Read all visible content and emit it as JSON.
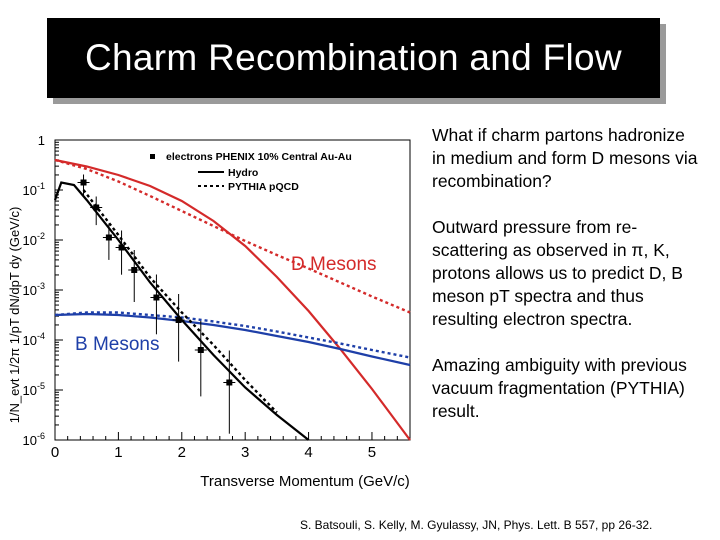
{
  "slide": {
    "title": "Charm Recombination and Flow",
    "bullets": [
      "What if charm partons hadronize in medium and form D mesons via recombination?",
      "Outward pressure from re-scattering as observed in π, K, protons allows us to predict D, B meson pT spectra and thus resulting electron spectra.",
      "Amazing ambiguity with previous vacuum fragmentation (PYTHIA) result."
    ],
    "citation": "S. Batsouli, S. Kelly, M. Gyulassy, JN, Phys. Lett. B 557, pp 26-32."
  },
  "chart_data": {
    "type": "line",
    "xlabel": "Transverse Momentum (GeV/c)",
    "ylabel": "1/N_evt 1/2π 1/pT dN/dpT dy (GeV/c)",
    "xlim": [
      0,
      5.6
    ],
    "ylim_log10": [
      -6,
      0
    ],
    "y_scale": "log",
    "x_ticks": [
      "0",
      "1",
      "2",
      "3",
      "4",
      "5"
    ],
    "y_ticks": [
      "1",
      "10^-1",
      "10^-2",
      "10^-3",
      "10^-4",
      "10^-5",
      "10^-6"
    ],
    "legend": {
      "placement": "top",
      "entries": [
        "electrons PHENIX 10% Central Au-Au",
        "Hydro",
        "PYTHIA pQCD"
      ]
    },
    "annotations": [
      "D Mesons",
      "B Mesons"
    ],
    "colors": {
      "d_mesons": "#d42a2a",
      "b_mesons": "#1e3fa8",
      "electrons": "#000000"
    },
    "series": [
      {
        "name": "D Mesons Hydro",
        "style": "solid",
        "color": "#d42a2a",
        "x": [
          0.0,
          0.5,
          1.0,
          1.5,
          2.0,
          2.5,
          3.0,
          3.5,
          4.0,
          4.5,
          5.0,
          5.6
        ],
        "log10y": [
          -0.4,
          -0.53,
          -0.7,
          -0.92,
          -1.22,
          -1.62,
          -2.12,
          -2.74,
          -3.42,
          -4.18,
          -4.98,
          -6.0
        ]
      },
      {
        "name": "D Mesons PYTHIA",
        "style": "dotted",
        "color": "#d42a2a",
        "x": [
          0.0,
          0.5,
          1.0,
          1.5,
          2.0,
          2.5,
          3.0,
          3.5,
          4.0,
          4.5,
          5.0,
          5.6
        ],
        "log10y": [
          -0.4,
          -0.58,
          -0.83,
          -1.12,
          -1.42,
          -1.72,
          -2.02,
          -2.3,
          -2.57,
          -2.85,
          -3.13,
          -3.45
        ]
      },
      {
        "name": "B Mesons Hydro",
        "style": "solid",
        "color": "#1e3fa8",
        "x": [
          0.0,
          0.5,
          1.0,
          1.5,
          2.0,
          2.5,
          3.0,
          3.5,
          4.0,
          4.5,
          5.0,
          5.6
        ],
        "log10y": [
          -3.5,
          -3.48,
          -3.5,
          -3.55,
          -3.62,
          -3.7,
          -3.8,
          -3.92,
          -4.04,
          -4.18,
          -4.33,
          -4.5
        ]
      },
      {
        "name": "B Mesons PYTHIA",
        "style": "dotted",
        "color": "#1e3fa8",
        "x": [
          0.0,
          0.5,
          1.0,
          1.5,
          2.0,
          2.5,
          3.0,
          3.5,
          4.0,
          4.5,
          5.0,
          5.6
        ],
        "log10y": [
          -3.5,
          -3.45,
          -3.45,
          -3.5,
          -3.55,
          -3.63,
          -3.72,
          -3.83,
          -3.95,
          -4.07,
          -4.2,
          -4.35
        ]
      },
      {
        "name": "Electrons Hydro",
        "style": "solid",
        "color": "#000000",
        "x": [
          0.0,
          0.1,
          0.3,
          0.5,
          1.0,
          1.5,
          2.0,
          2.5,
          3.0,
          3.5,
          4.0
        ],
        "log10y": [
          -1.2,
          -0.85,
          -0.9,
          -1.2,
          -2.0,
          -2.85,
          -3.6,
          -4.3,
          -4.95,
          -5.5,
          -6.0
        ]
      },
      {
        "name": "Electrons PYTHIA",
        "style": "dotted",
        "color": "#000000",
        "x": [
          0.45,
          1.0,
          1.5,
          2.0,
          2.5,
          3.0,
          3.5
        ],
        "log10y": [
          -1.0,
          -1.9,
          -2.75,
          -3.45,
          -4.1,
          -4.8,
          -5.45
        ]
      }
    ],
    "data_points": {
      "name": "electrons PHENIX 10% Central Au-Au",
      "x": [
        0.45,
        0.65,
        0.85,
        1.05,
        1.25,
        1.6,
        1.95,
        2.3,
        2.75
      ],
      "log10y": [
        -0.85,
        -1.35,
        -1.95,
        -2.15,
        -2.6,
        -3.15,
        -3.6,
        -4.2,
        -4.85
      ]
    }
  }
}
